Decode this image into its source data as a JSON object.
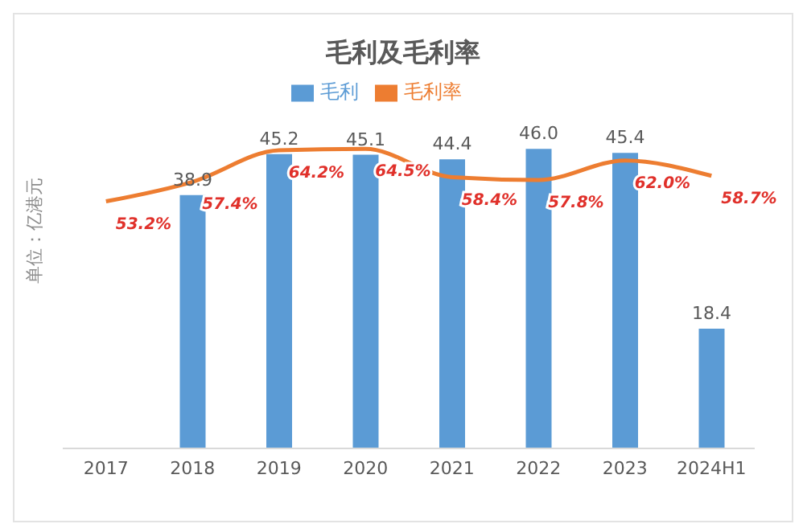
{
  "chart_data": {
    "type": "bar",
    "title": "毛利及毛利率",
    "ylabel": "单位：亿港元",
    "categories": [
      "2017",
      "2018",
      "2019",
      "2020",
      "2021",
      "2022",
      "2023",
      "2024H1"
    ],
    "series": [
      {
        "name": "毛利",
        "color": "#5b9bd5",
        "values": [
          null,
          38.9,
          45.2,
          45.1,
          44.4,
          46.0,
          45.4,
          18.4
        ],
        "value_labels": [
          null,
          "38.9",
          "45.2",
          "45.1",
          "44.4",
          "46.0",
          "45.4",
          "18.4"
        ]
      },
      {
        "name": "毛利率",
        "type": "line",
        "axis": "y2",
        "color": "#ed7d31",
        "values": [
          53.2,
          57.4,
          64.2,
          64.5,
          58.4,
          57.8,
          62.0,
          58.7
        ],
        "value_labels": [
          "53.2%",
          "57.4%",
          "64.2%",
          "64.5%",
          "58.4%",
          "57.8%",
          "62.0%",
          "58.7%"
        ]
      }
    ],
    "legend": "top",
    "marker": "none"
  }
}
